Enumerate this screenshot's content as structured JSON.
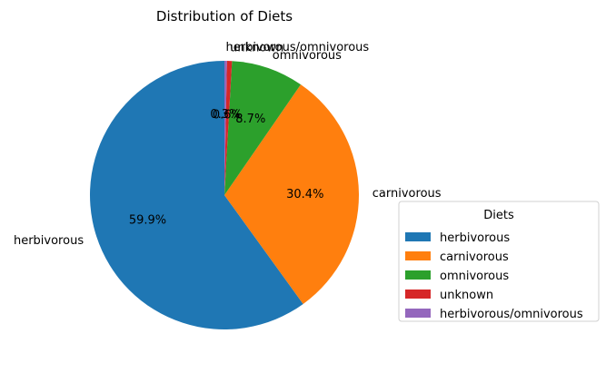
{
  "chart_data": {
    "type": "pie",
    "title": "Distribution of Diets",
    "categories": [
      "herbivorous",
      "carnivorous",
      "omnivorous",
      "unknown",
      "herbivorous/omnivorous"
    ],
    "values": [
      59.9,
      30.4,
      8.7,
      0.6,
      0.3
    ],
    "percent_labels": [
      "59.9%",
      "30.4%",
      "8.7%",
      "0.6%",
      "0.3%"
    ],
    "colors": [
      "#1f77b4",
      "#ff7f0e",
      "#2ca02c",
      "#d62728",
      "#9467bd"
    ],
    "start_angle_deg": 90,
    "direction": "counterclockwise",
    "legend": {
      "title": "Diets",
      "placement": "right",
      "entries": [
        "herbivorous",
        "carnivorous",
        "omnivorous",
        "unknown",
        "herbivorous/omnivorous"
      ]
    }
  }
}
